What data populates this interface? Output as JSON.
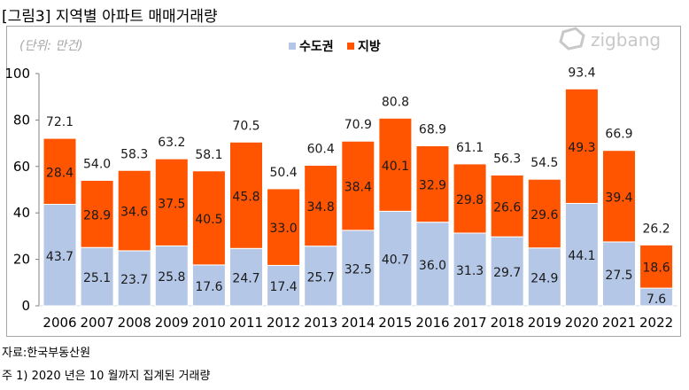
{
  "figure_title": "[그림3] 지역별 아파트 매매거래량",
  "watermark": "zigbang",
  "source": "자료:한국부동산원",
  "note": "주 1) 2020 년은 10 월까지 집계된 거래량",
  "chart_data": {
    "type": "bar",
    "stacked": true,
    "unit_label": "(단위: 만건)",
    "categories": [
      "2006",
      "2007",
      "2008",
      "2009",
      "2010",
      "2011",
      "2012",
      "2013",
      "2014",
      "2015",
      "2016",
      "2017",
      "2018",
      "2019",
      "2020",
      "2021",
      "2022"
    ],
    "series": [
      {
        "name": "수도권",
        "color": "#b4c7e7",
        "values": [
          43.7,
          25.1,
          23.7,
          25.8,
          17.6,
          24.7,
          17.4,
          25.7,
          32.5,
          40.7,
          36.0,
          31.3,
          29.7,
          24.9,
          44.1,
          27.5,
          7.6
        ]
      },
      {
        "name": "지방",
        "color": "#ff5400",
        "values": [
          28.4,
          28.9,
          34.6,
          37.5,
          40.5,
          45.8,
          33.0,
          34.8,
          38.4,
          40.1,
          32.9,
          29.8,
          26.6,
          29.6,
          49.3,
          39.4,
          18.6
        ]
      }
    ],
    "totals": [
      "72.1",
      "54.0",
      "58.3",
      "63.2",
      "58.1",
      "70.5",
      "50.4",
      "60.4",
      "70.9",
      "80.8",
      "68.9",
      "61.1",
      "56.3",
      "54.5",
      "93.4",
      "66.9",
      "26.2"
    ],
    "ylim": [
      0,
      100
    ],
    "yticks": [
      0,
      20,
      40,
      60,
      80,
      100
    ],
    "legend_position": "top-center",
    "grid": false
  }
}
